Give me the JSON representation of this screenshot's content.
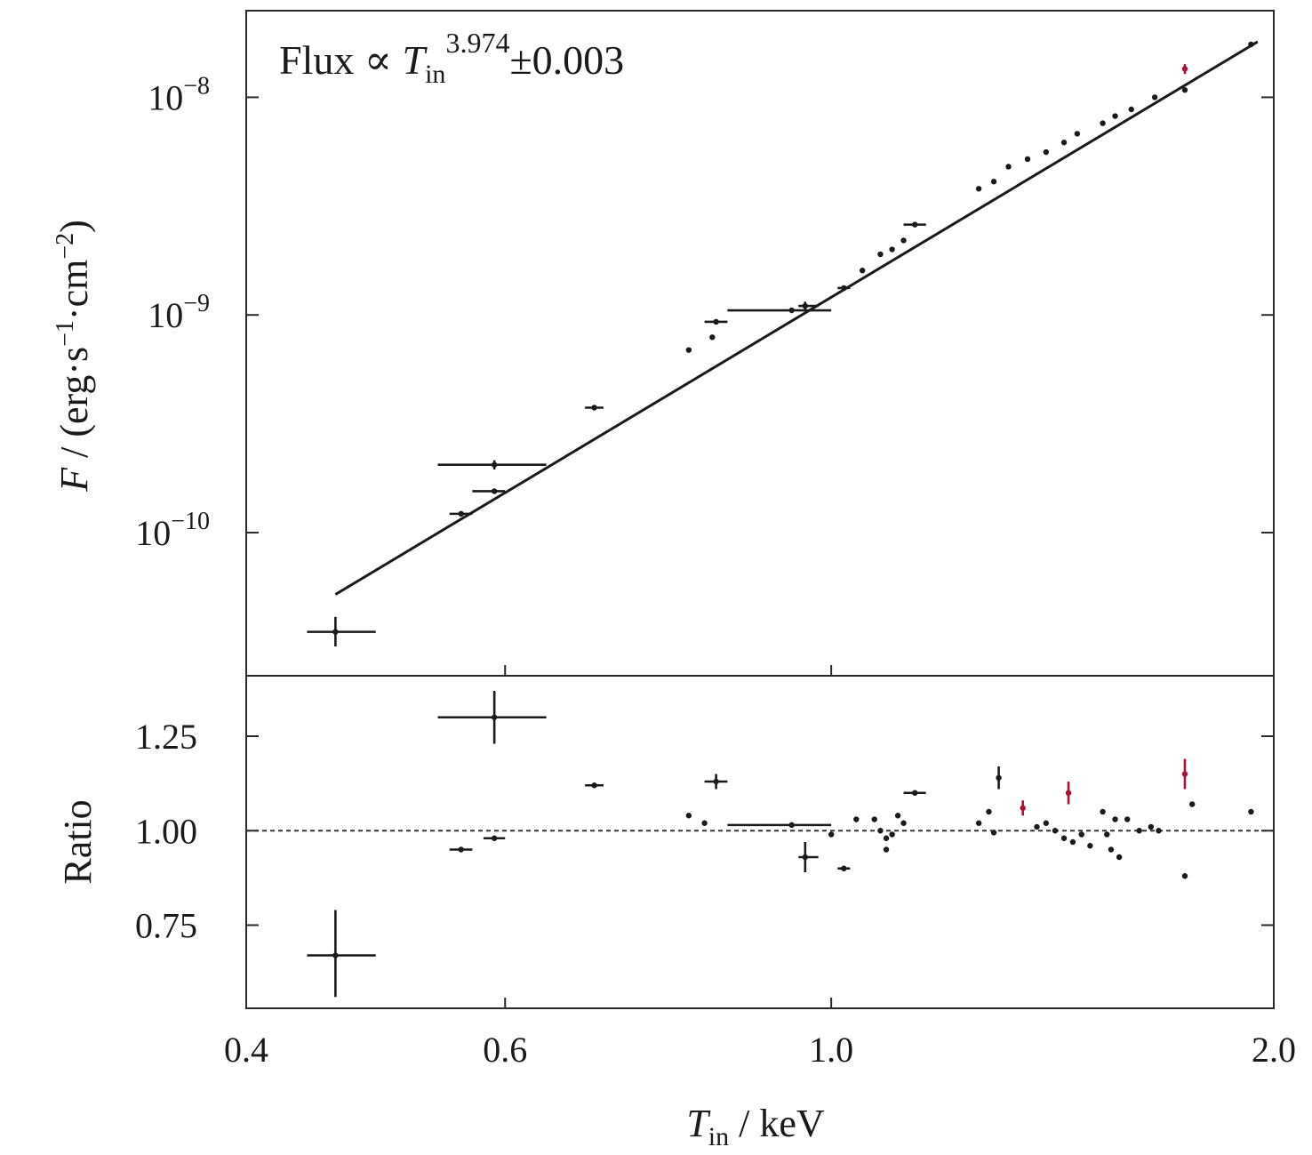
{
  "figure": {
    "annotation": {
      "prefix": "Flux ∝ ",
      "var": "T",
      "sub": "in",
      "exponent": "3.974",
      "error": "±0.003"
    },
    "x_axis": {
      "var": "T",
      "sub": "in",
      "unit": " / keV"
    },
    "top_y_axis": {
      "var": "F",
      "unit": " / (erg·s",
      "s_exp": "−1",
      "mid": "·cm",
      "cm_exp": "−2",
      "close": ")"
    },
    "bottom_y_axis": {
      "label": "Ratio"
    }
  },
  "chart_data": [
    {
      "type": "scatter",
      "panel": "flux",
      "xscale": "log",
      "yscale": "log",
      "xlim": [
        0.4,
        2.0
      ],
      "ylim": [
        2.2e-11,
        2.5e-08
      ],
      "xticks": [
        {
          "value": 0.4,
          "label": "0.4"
        },
        {
          "value": 0.6,
          "label": "0.6"
        },
        {
          "value": 1.0,
          "label": "1.0"
        },
        {
          "value": 2.0,
          "label": "2.0"
        }
      ],
      "yticks": [
        {
          "value": 1e-08,
          "base": "10",
          "exp": "−8"
        },
        {
          "value": 1e-09,
          "base": "10",
          "exp": "−9"
        },
        {
          "value": 1e-10,
          "base": "10",
          "exp": "−10"
        }
      ],
      "fit": {
        "slope": 3.974,
        "slope_error": 0.003,
        "x_range": [
          0.46,
          1.95
        ],
        "y_range": [
          5.2e-11,
          1.8e-08
        ]
      },
      "colors": {
        "black": "#1a1a1a",
        "red": "#b01030"
      },
      "points": [
        {
          "x": 0.46,
          "y": 3.5e-11,
          "xerr": [
            0.44,
            0.49
          ],
          "yerr": [
            3e-11,
            4.1e-11
          ],
          "color": "black"
        },
        {
          "x": 0.56,
          "y": 1.22e-10,
          "xerr": [
            0.55,
            0.57
          ],
          "yerr": null,
          "color": "black"
        },
        {
          "x": 0.59,
          "y": 2.05e-10,
          "xerr": [
            0.54,
            0.64
          ],
          "yerr": [
            1.95e-10,
            2.15e-10
          ],
          "color": "black"
        },
        {
          "x": 0.59,
          "y": 1.55e-10,
          "xerr": [
            0.57,
            0.6
          ],
          "yerr": null,
          "color": "black"
        },
        {
          "x": 0.69,
          "y": 3.75e-10,
          "xerr": [
            0.68,
            0.7
          ],
          "yerr": null,
          "color": "black"
        },
        {
          "x": 0.8,
          "y": 6.9e-10,
          "xerr": null,
          "yerr": null,
          "color": "black"
        },
        {
          "x": 0.83,
          "y": 7.9e-10,
          "xerr": null,
          "yerr": null,
          "color": "black"
        },
        {
          "x": 0.835,
          "y": 9.3e-10,
          "xerr": [
            0.82,
            0.85
          ],
          "yerr": null,
          "color": "black"
        },
        {
          "x": 0.94,
          "y": 1.05e-09,
          "xerr": [
            0.85,
            1.0
          ],
          "yerr": null,
          "color": "black"
        },
        {
          "x": 0.96,
          "y": 1.1e-09,
          "xerr": [
            0.95,
            0.98
          ],
          "yerr": [
            1.05e-09,
            1.15e-09
          ],
          "color": "black"
        },
        {
          "x": 1.02,
          "y": 1.33e-09,
          "xerr": [
            1.01,
            1.03
          ],
          "yerr": null,
          "color": "black"
        },
        {
          "x": 1.05,
          "y": 1.6e-09,
          "xerr": null,
          "yerr": null,
          "color": "black"
        },
        {
          "x": 1.08,
          "y": 1.9e-09,
          "xerr": null,
          "yerr": null,
          "color": "black"
        },
        {
          "x": 1.1,
          "y": 2e-09,
          "xerr": null,
          "yerr": null,
          "color": "black"
        },
        {
          "x": 1.12,
          "y": 2.2e-09,
          "xerr": null,
          "yerr": null,
          "color": "black"
        },
        {
          "x": 1.14,
          "y": 2.6e-09,
          "xerr": [
            1.12,
            1.16
          ],
          "yerr": null,
          "color": "black"
        },
        {
          "x": 1.26,
          "y": 3.8e-09,
          "xerr": null,
          "yerr": null,
          "color": "black"
        },
        {
          "x": 1.29,
          "y": 4.1e-09,
          "xerr": null,
          "yerr": null,
          "color": "black"
        },
        {
          "x": 1.32,
          "y": 4.8e-09,
          "xerr": null,
          "yerr": null,
          "color": "black"
        },
        {
          "x": 1.36,
          "y": 5.2e-09,
          "xerr": null,
          "yerr": null,
          "color": "black"
        },
        {
          "x": 1.4,
          "y": 5.6e-09,
          "xerr": null,
          "yerr": null,
          "color": "black"
        },
        {
          "x": 1.44,
          "y": 6.2e-09,
          "xerr": null,
          "yerr": null,
          "color": "black"
        },
        {
          "x": 1.47,
          "y": 6.8e-09,
          "xerr": null,
          "yerr": null,
          "color": "black"
        },
        {
          "x": 1.53,
          "y": 7.6e-09,
          "xerr": null,
          "yerr": null,
          "color": "black"
        },
        {
          "x": 1.56,
          "y": 8.2e-09,
          "xerr": null,
          "yerr": null,
          "color": "black"
        },
        {
          "x": 1.6,
          "y": 8.8e-09,
          "xerr": null,
          "yerr": null,
          "color": "black"
        },
        {
          "x": 1.66,
          "y": 1e-08,
          "xerr": null,
          "yerr": null,
          "color": "black"
        },
        {
          "x": 1.74,
          "y": 1.08e-08,
          "xerr": null,
          "yerr": null,
          "color": "black"
        },
        {
          "x": 1.74,
          "y": 1.35e-08,
          "xerr": null,
          "yerr": [
            1.28e-08,
            1.42e-08
          ],
          "color": "red"
        },
        {
          "x": 1.93,
          "y": 1.75e-08,
          "xerr": null,
          "yerr": null,
          "color": "black"
        }
      ]
    },
    {
      "type": "scatter",
      "panel": "ratio",
      "xscale": "log",
      "xlim": [
        0.4,
        2.0
      ],
      "ylim": [
        0.53,
        1.41
      ],
      "reference": 1.0,
      "yticks": [
        {
          "value": 1.25,
          "label": "1.25"
        },
        {
          "value": 1.0,
          "label": "1.00"
        },
        {
          "value": 0.75,
          "label": "0.75"
        }
      ],
      "points": [
        {
          "x": 0.46,
          "y": 0.67,
          "xerr": [
            0.44,
            0.49
          ],
          "yerr": [
            0.56,
            0.79
          ],
          "color": "black"
        },
        {
          "x": 0.56,
          "y": 0.95,
          "xerr": [
            0.55,
            0.57
          ],
          "yerr": null,
          "color": "black"
        },
        {
          "x": 0.59,
          "y": 1.3,
          "xerr": [
            0.54,
            0.64
          ],
          "yerr": [
            1.23,
            1.37
          ],
          "color": "black"
        },
        {
          "x": 0.59,
          "y": 0.98,
          "xerr": [
            0.58,
            0.6
          ],
          "yerr": null,
          "color": "black"
        },
        {
          "x": 0.69,
          "y": 1.12,
          "xerr": [
            0.68,
            0.7
          ],
          "yerr": null,
          "color": "black"
        },
        {
          "x": 0.8,
          "y": 1.04,
          "xerr": null,
          "yerr": null,
          "color": "black"
        },
        {
          "x": 0.82,
          "y": 1.02,
          "xerr": null,
          "yerr": null,
          "color": "black"
        },
        {
          "x": 0.835,
          "y": 1.13,
          "xerr": [
            0.82,
            0.85
          ],
          "yerr": [
            1.11,
            1.15
          ],
          "color": "black"
        },
        {
          "x": 0.94,
          "y": 1.015,
          "xerr": [
            0.85,
            1.0
          ],
          "yerr": null,
          "color": "black"
        },
        {
          "x": 0.96,
          "y": 0.93,
          "xerr": [
            0.95,
            0.98
          ],
          "yerr": [
            0.89,
            0.97
          ],
          "color": "black"
        },
        {
          "x": 1.0,
          "y": 0.99,
          "xerr": null,
          "yerr": null,
          "color": "black"
        },
        {
          "x": 1.02,
          "y": 0.9,
          "xerr": [
            1.01,
            1.03
          ],
          "yerr": null,
          "color": "black"
        },
        {
          "x": 1.04,
          "y": 1.03,
          "xerr": null,
          "yerr": null,
          "color": "black"
        },
        {
          "x": 1.07,
          "y": 1.03,
          "xerr": null,
          "yerr": null,
          "color": "black"
        },
        {
          "x": 1.08,
          "y": 1.0,
          "xerr": null,
          "yerr": null,
          "color": "black"
        },
        {
          "x": 1.09,
          "y": 0.98,
          "xerr": null,
          "yerr": null,
          "color": "black"
        },
        {
          "x": 1.09,
          "y": 0.95,
          "xerr": null,
          "yerr": null,
          "color": "black"
        },
        {
          "x": 1.1,
          "y": 0.99,
          "xerr": null,
          "yerr": null,
          "color": "black"
        },
        {
          "x": 1.11,
          "y": 1.04,
          "xerr": null,
          "yerr": null,
          "color": "black"
        },
        {
          "x": 1.12,
          "y": 1.02,
          "xerr": null,
          "yerr": null,
          "color": "black"
        },
        {
          "x": 1.14,
          "y": 1.1,
          "xerr": [
            1.12,
            1.16
          ],
          "yerr": null,
          "color": "black"
        },
        {
          "x": 1.26,
          "y": 1.02,
          "xerr": null,
          "yerr": null,
          "color": "black"
        },
        {
          "x": 1.28,
          "y": 1.05,
          "xerr": null,
          "yerr": null,
          "color": "black"
        },
        {
          "x": 1.29,
          "y": 0.995,
          "xerr": null,
          "yerr": null,
          "color": "black"
        },
        {
          "x": 1.3,
          "y": 1.14,
          "xerr": null,
          "yerr": [
            1.11,
            1.17
          ],
          "color": "black"
        },
        {
          "x": 1.35,
          "y": 1.06,
          "xerr": null,
          "yerr": [
            1.04,
            1.08
          ],
          "color": "red"
        },
        {
          "x": 1.38,
          "y": 1.01,
          "xerr": null,
          "yerr": null,
          "color": "black"
        },
        {
          "x": 1.4,
          "y": 1.02,
          "xerr": null,
          "yerr": null,
          "color": "black"
        },
        {
          "x": 1.42,
          "y": 1.0,
          "xerr": null,
          "yerr": null,
          "color": "black"
        },
        {
          "x": 1.44,
          "y": 0.98,
          "xerr": null,
          "yerr": null,
          "color": "black"
        },
        {
          "x": 1.45,
          "y": 1.1,
          "xerr": null,
          "yerr": [
            1.07,
            1.13
          ],
          "color": "red"
        },
        {
          "x": 1.46,
          "y": 0.97,
          "xerr": null,
          "yerr": null,
          "color": "black"
        },
        {
          "x": 1.48,
          "y": 0.99,
          "xerr": null,
          "yerr": null,
          "color": "black"
        },
        {
          "x": 1.5,
          "y": 0.96,
          "xerr": null,
          "yerr": null,
          "color": "black"
        },
        {
          "x": 1.53,
          "y": 1.05,
          "xerr": null,
          "yerr": null,
          "color": "black"
        },
        {
          "x": 1.54,
          "y": 0.99,
          "xerr": null,
          "yerr": null,
          "color": "black"
        },
        {
          "x": 1.55,
          "y": 0.95,
          "xerr": null,
          "yerr": null,
          "color": "black"
        },
        {
          "x": 1.56,
          "y": 1.03,
          "xerr": null,
          "yerr": null,
          "color": "black"
        },
        {
          "x": 1.57,
          "y": 0.93,
          "xerr": null,
          "yerr": null,
          "color": "black"
        },
        {
          "x": 1.59,
          "y": 1.03,
          "xerr": null,
          "yerr": null,
          "color": "black"
        },
        {
          "x": 1.62,
          "y": 1.0,
          "xerr": null,
          "yerr": null,
          "color": "black"
        },
        {
          "x": 1.65,
          "y": 1.01,
          "xerr": null,
          "yerr": null,
          "color": "black"
        },
        {
          "x": 1.67,
          "y": 1.0,
          "xerr": null,
          "yerr": null,
          "color": "black"
        },
        {
          "x": 1.74,
          "y": 0.88,
          "xerr": null,
          "yerr": null,
          "color": "black"
        },
        {
          "x": 1.74,
          "y": 1.15,
          "xerr": null,
          "yerr": [
            1.11,
            1.19
          ],
          "color": "red"
        },
        {
          "x": 1.76,
          "y": 1.07,
          "xerr": null,
          "yerr": null,
          "color": "black"
        },
        {
          "x": 1.93,
          "y": 1.05,
          "xerr": null,
          "yerr": null,
          "color": "black"
        }
      ]
    }
  ]
}
